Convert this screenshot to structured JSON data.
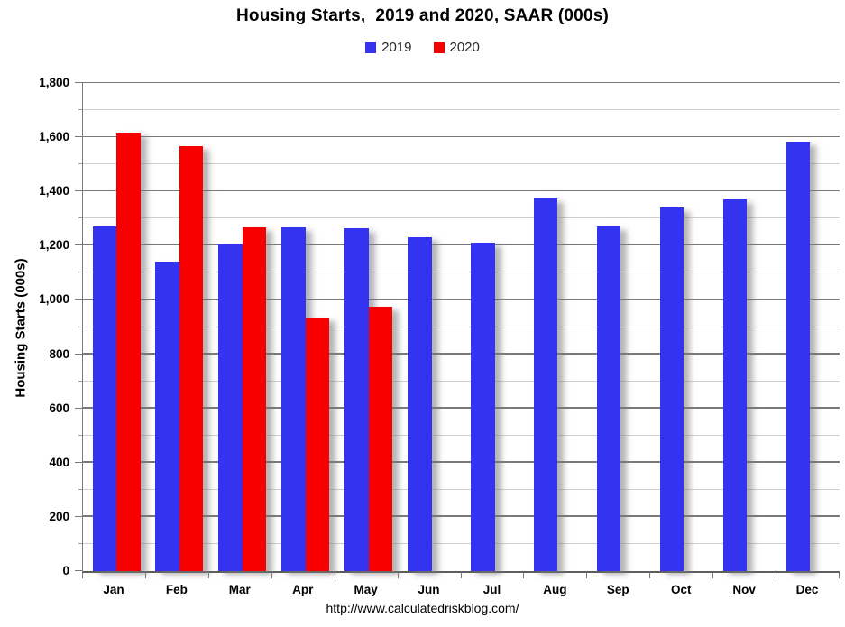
{
  "chart_data": {
    "type": "bar",
    "title": "Housing Starts,  2019 and 2020, SAAR (000s)",
    "xlabel": "",
    "ylabel": "Housing Starts (000s)",
    "categories": [
      "Jan",
      "Feb",
      "Mar",
      "Apr",
      "May",
      "Jun",
      "Jul",
      "Aug",
      "Sep",
      "Oct",
      "Nov",
      "Dec"
    ],
    "series": [
      {
        "name": "2019",
        "color": "#3333F0",
        "values": [
          1270,
          1140,
          1205,
          1267,
          1266,
          1232,
          1210,
          1375,
          1272,
          1340,
          1370,
          1583
        ]
      },
      {
        "name": "2020",
        "color": "#F90000",
        "values": [
          1617,
          1567,
          1269,
          934,
          974,
          null,
          null,
          null,
          null,
          null,
          null,
          null
        ]
      }
    ],
    "ylim": [
      0,
      1800
    ],
    "y_major_step": 200,
    "y_minor_step": 100,
    "y_tick_labels": [
      "0",
      "200",
      "400",
      "600",
      "800",
      "1,000",
      "1,200",
      "1,400",
      "1,600",
      "1,800"
    ],
    "grid": true,
    "legend_position": "top-center"
  },
  "colors": {
    "series_2019": "#3333F0",
    "series_2020": "#F90000",
    "major_grid": "#7a7a7a",
    "minor_grid": "#cfcfcf",
    "axis": "#5e5e5e",
    "text": "#000000"
  },
  "footer": {
    "url": "http://www.calculatedriskblog.com/"
  }
}
